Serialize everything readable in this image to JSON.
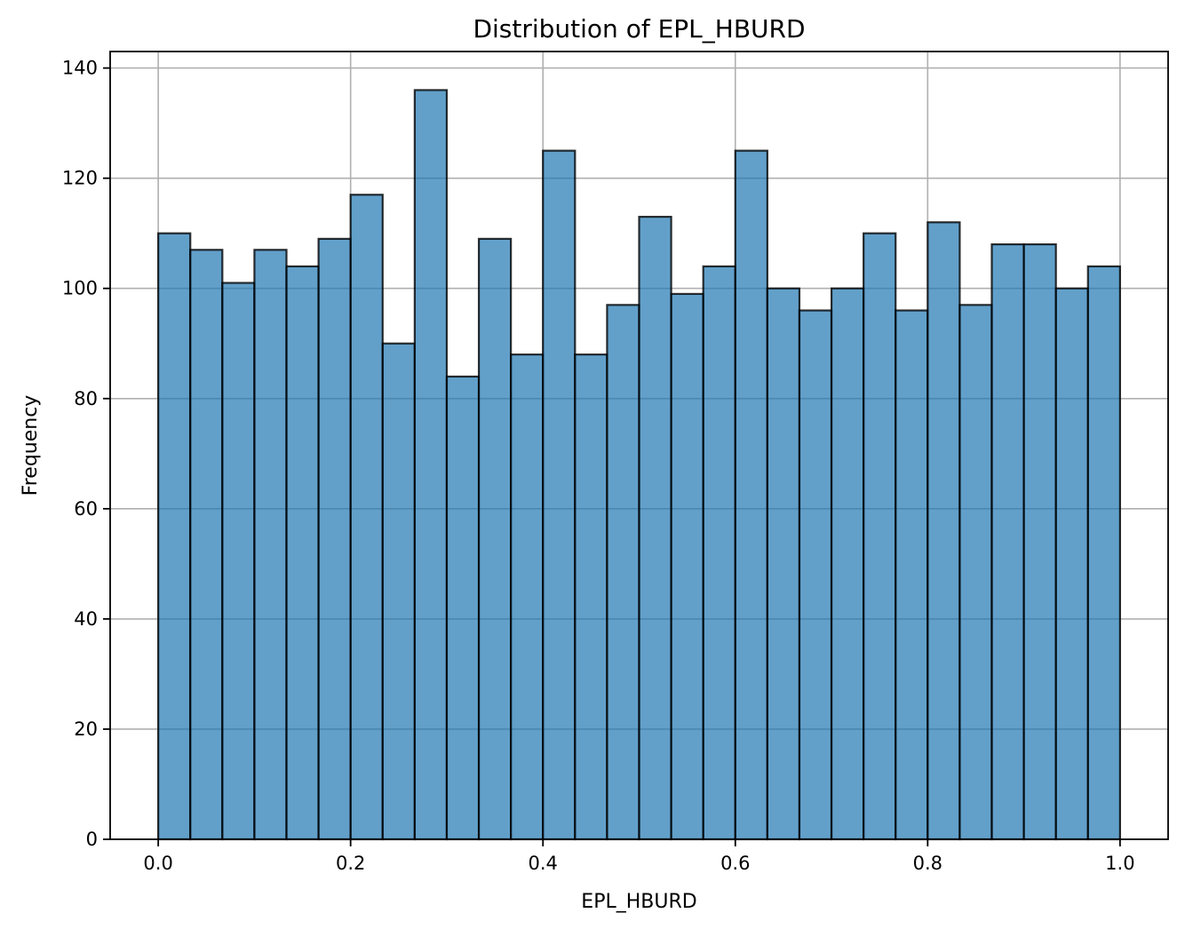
{
  "chart_data": {
    "type": "bar",
    "title": "Distribution of EPL_HBURD",
    "xlabel": "EPL_HBURD",
    "ylabel": "Frequency",
    "bins": 30,
    "bin_range": [
      0.0,
      1.0
    ],
    "values": [
      110,
      107,
      101,
      107,
      104,
      109,
      117,
      90,
      136,
      84,
      109,
      88,
      125,
      88,
      97,
      113,
      99,
      104,
      125,
      100,
      96,
      100,
      110,
      96,
      112,
      97,
      108,
      108,
      100,
      104
    ],
    "xlim": [
      -0.05,
      1.05
    ],
    "ylim": [
      0,
      143
    ],
    "xticks": [
      0.0,
      0.2,
      0.4,
      0.6,
      0.8,
      1.0
    ],
    "xtick_labels": [
      "0.0",
      "0.2",
      "0.4",
      "0.6",
      "0.8",
      "1.0"
    ],
    "yticks": [
      0,
      20,
      40,
      60,
      80,
      100,
      120,
      140
    ],
    "ytick_labels": [
      "0",
      "20",
      "40",
      "60",
      "80",
      "100",
      "120",
      "140"
    ],
    "grid": true,
    "bar_color": "#1f77b4",
    "edge_color": "#000000"
  }
}
